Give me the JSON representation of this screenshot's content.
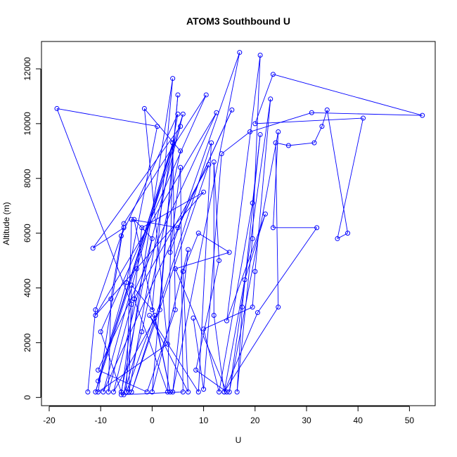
{
  "chart_data": {
    "type": "line",
    "title": "ATOM3 Southbound U",
    "xlabel": "U",
    "ylabel": "Altitude (m)",
    "xlim": [
      -21.5,
      55
    ],
    "ylim": [
      -300,
      13000
    ],
    "xticks": [
      -20,
      -10,
      0,
      10,
      20,
      30,
      40,
      50
    ],
    "yticks": [
      0,
      2000,
      4000,
      6000,
      8000,
      10000,
      12000
    ],
    "xtick_labels": [
      "-20",
      "-10",
      "0",
      "10",
      "20",
      "30",
      "40",
      "50"
    ],
    "ytick_labels": [
      "0",
      "2000",
      "4000",
      "6000",
      "8000",
      "10000",
      "12000"
    ],
    "grid": false,
    "series": [
      {
        "color": "#0000ff",
        "marker": "open-circle",
        "points": [
          [
            -12.5,
            200
          ],
          [
            -11,
            3200
          ],
          [
            -5.5,
            6200
          ],
          [
            -11.5,
            5450
          ],
          [
            5.5,
            9900
          ],
          [
            -11,
            200
          ],
          [
            -5,
            4200
          ],
          [
            1,
            9900
          ],
          [
            -18.5,
            10550
          ],
          [
            -4,
            3400
          ],
          [
            -8.5,
            200
          ],
          [
            -8,
            3600
          ],
          [
            -6,
            5900
          ],
          [
            5,
            10350
          ],
          [
            -4.5,
            200
          ],
          [
            -4,
            4100
          ],
          [
            0,
            3200
          ],
          [
            4,
            11650
          ],
          [
            -5.5,
            100
          ],
          [
            -2,
            2400
          ],
          [
            5.5,
            9000
          ],
          [
            -1.5,
            10550
          ],
          [
            3,
            1950
          ],
          [
            -10.5,
            200
          ],
          [
            -5.5,
            6350
          ],
          [
            10.5,
            11050
          ],
          [
            -10,
            2400
          ],
          [
            -6,
            200
          ],
          [
            0,
            5800
          ],
          [
            -3.5,
            6500
          ],
          [
            3.5,
            200
          ],
          [
            0.5,
            3000
          ],
          [
            -5,
            200
          ],
          [
            -4,
            6500
          ],
          [
            5,
            6200
          ],
          [
            15.5,
            10500
          ],
          [
            -9.5,
            200
          ],
          [
            -3,
            4700
          ],
          [
            4,
            9300
          ],
          [
            3,
            200
          ],
          [
            -3.5,
            3600
          ],
          [
            -2,
            6200
          ],
          [
            10,
            7500
          ],
          [
            -11,
            3000
          ],
          [
            12.5,
            10400
          ],
          [
            -10.5,
            1000
          ],
          [
            -1,
            200
          ],
          [
            4.5,
            3200
          ],
          [
            4,
            9300
          ],
          [
            -10.5,
            600
          ],
          [
            6,
            10350
          ],
          [
            -7.5,
            200
          ],
          [
            1.5,
            3200
          ],
          [
            5,
            11050
          ],
          [
            0,
            200
          ],
          [
            7,
            5400
          ],
          [
            4,
            200
          ],
          [
            17,
            12600
          ],
          [
            3.5,
            5300
          ],
          [
            5.5,
            8400
          ],
          [
            6,
            200
          ],
          [
            -6,
            100
          ],
          [
            -3.5,
            3600
          ],
          [
            11,
            8500
          ],
          [
            -4,
            200
          ],
          [
            11.5,
            9300
          ],
          [
            9,
            200
          ],
          [
            -0.5,
            3000
          ],
          [
            7,
            200
          ],
          [
            6,
            4600
          ],
          [
            9,
            6000
          ],
          [
            15,
            5300
          ],
          [
            4.5,
            4700
          ],
          [
            14.5,
            200
          ],
          [
            8.5,
            1000
          ],
          [
            13,
            5000
          ],
          [
            12,
            8600
          ],
          [
            12,
            3000
          ],
          [
            14,
            200
          ],
          [
            18,
            4300
          ],
          [
            22,
            6700
          ],
          [
            14.5,
            2800
          ],
          [
            21,
            12500
          ],
          [
            19.5,
            5800
          ],
          [
            16.5,
            200
          ],
          [
            17.5,
            3300
          ],
          [
            21,
            9600
          ],
          [
            19.5,
            7100
          ],
          [
            13,
            200
          ],
          [
            10,
            2500
          ],
          [
            19.5,
            3300
          ],
          [
            20,
            4600
          ],
          [
            23,
            10900
          ],
          [
            15,
            200
          ],
          [
            24.5,
            9700
          ],
          [
            23.5,
            6200
          ],
          [
            32,
            6200
          ],
          [
            20.5,
            3100
          ],
          [
            14,
            200
          ],
          [
            24.5,
            3300
          ],
          [
            24,
            9300
          ],
          [
            26.5,
            9200
          ],
          [
            31.5,
            9300
          ],
          [
            33,
            9900
          ],
          [
            34,
            10500
          ],
          [
            38,
            6000
          ],
          [
            36,
            5800
          ],
          [
            41,
            10200
          ],
          [
            20,
            10000
          ],
          [
            23.5,
            11800
          ],
          [
            52.5,
            10300
          ],
          [
            31,
            10400
          ],
          [
            19,
            9700
          ],
          [
            13.5,
            8900
          ],
          [
            10,
            300
          ],
          [
            8,
            2900
          ]
        ]
      }
    ]
  }
}
